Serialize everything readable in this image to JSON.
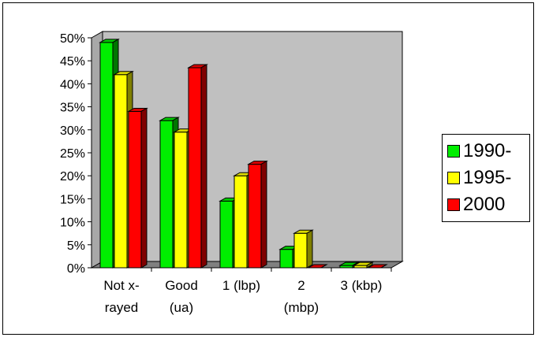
{
  "chart_data": {
    "type": "bar",
    "categories": [
      [
        "Not x-",
        "rayed"
      ],
      [
        "Good",
        "(ua)"
      ],
      [
        "1 (lbp)"
      ],
      [
        "2",
        "(mbp)"
      ],
      [
        "3 (kbp)"
      ]
    ],
    "series": [
      {
        "name": "1990-",
        "color": "#00ee00",
        "values": [
          49,
          32,
          14.5,
          4,
          0.5
        ]
      },
      {
        "name": "1995-",
        "color": "#ffff00",
        "values": [
          42,
          29.5,
          20,
          7.5,
          0.5
        ]
      },
      {
        "name": "2000",
        "color": "#ff0000",
        "values": [
          34,
          43.5,
          22.5,
          0,
          0
        ]
      }
    ],
    "ylim": [
      0,
      50
    ],
    "yticks": [
      "0%",
      "5%",
      "10%",
      "15%",
      "20%",
      "25%",
      "30%",
      "35%",
      "40%",
      "45%",
      "50%"
    ],
    "grid": false,
    "legend": "right",
    "wall_color": "#c0c0c0"
  }
}
